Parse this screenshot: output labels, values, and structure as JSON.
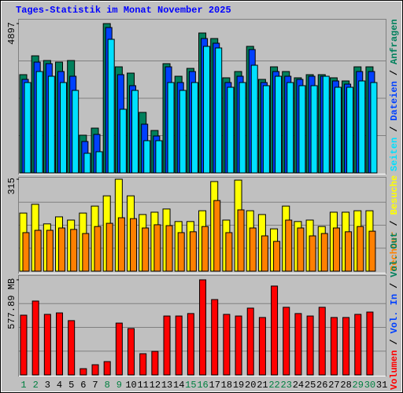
{
  "chart_data": [
    {
      "type": "bar",
      "title": "Tages-Statistik im Monat November 2025",
      "categories": [
        "1",
        "2",
        "3",
        "4",
        "5",
        "6",
        "7",
        "8",
        "9",
        "10",
        "11",
        "12",
        "13",
        "14",
        "15",
        "16",
        "17",
        "18",
        "19",
        "20",
        "21",
        "22",
        "23",
        "24",
        "25",
        "26",
        "27",
        "28",
        "29",
        "30",
        "31"
      ],
      "category_colors": [
        "#008040",
        "#008040",
        "#000000",
        "#000000",
        "#000000",
        "#000000",
        "#000000",
        "#008040",
        "#008040",
        "#000000",
        "#000000",
        "#000000",
        "#000000",
        "#000000",
        "#008040",
        "#008040",
        "#000000",
        "#000000",
        "#000000",
        "#000000",
        "#000000",
        "#008040",
        "#008040",
        "#000000",
        "#000000",
        "#000000",
        "#000000",
        "#000000",
        "#008040",
        "#008040",
        "#000000"
      ],
      "legend_separator": "/",
      "ylim": [
        0,
        4897
      ],
      "yticks": [
        4897
      ],
      "series": [
        {
          "name": "Anfragen",
          "color": "#00805c",
          "values": [
            3222,
            3840,
            3686,
            3634,
            3686,
            1237,
            1469,
            4897,
            3479,
            3273,
            1985,
            1392,
            3583,
            3170,
            3428,
            4588,
            4407,
            3119,
            3325,
            4150,
            3067,
            3479,
            3325,
            3119,
            3222,
            3222,
            3119,
            3016,
            3479,
            3479,
            null
          ]
        },
        {
          "name": "Dateien",
          "color": "#0040ff",
          "values": [
            3067,
            3634,
            3583,
            3325,
            3170,
            1031,
            1263,
            4768,
            3222,
            2861,
            1598,
            1211,
            3479,
            2964,
            3325,
            4407,
            4253,
            2964,
            3170,
            4046,
            2964,
            3325,
            3170,
            3067,
            3170,
            3170,
            3016,
            2912,
            3325,
            3325,
            null
          ]
        },
        {
          "name": "Seiten",
          "color": "#00e0ff",
          "values": [
            2964,
            3325,
            3170,
            2964,
            2706,
            644,
            696,
            4381,
            2088,
            2706,
            1057,
            1057,
            2964,
            2706,
            2964,
            4150,
            4098,
            2809,
            2964,
            3531,
            2861,
            3170,
            2964,
            2861,
            2861,
            3170,
            2809,
            2809,
            3016,
            2964,
            null
          ]
        }
      ]
    },
    {
      "type": "bar",
      "legend_separator": "/",
      "ylim": [
        0,
        315
      ],
      "yticks": [
        315
      ],
      "series": [
        {
          "name": "Besuche",
          "color": "#ffff00",
          "values": [
            199,
            229,
            162,
            186,
            175,
            199,
            223,
            258,
            315,
            258,
            194,
            202,
            213,
            170,
            170,
            207,
            307,
            175,
            312,
            207,
            194,
            145,
            223,
            170,
            175,
            153,
            202,
            202,
            207,
            207,
            null
          ]
        },
        {
          "name": "Rechner",
          "color": "#ff8000",
          "values": [
            132,
            140,
            140,
            148,
            143,
            129,
            153,
            164,
            183,
            180,
            148,
            159,
            156,
            132,
            135,
            153,
            242,
            132,
            210,
            148,
            121,
            102,
            175,
            148,
            121,
            129,
            148,
            135,
            153,
            137,
            null
          ]
        }
      ]
    },
    {
      "type": "bar",
      "legend_separator": "/",
      "ylim": [
        0,
        577.89
      ],
      "yticks": [
        {
          "value": 577.89,
          "label": "577.89 MB"
        }
      ],
      "series": [
        {
          "name": "Volumen",
          "color": "#ff0000",
          "values": [
            363,
            449,
            368,
            377,
            330,
            38,
            62,
            81,
            315,
            282,
            129,
            143,
            358,
            358,
            373,
            577.89,
            458,
            368,
            358,
            406,
            349,
            540,
            411,
            373,
            358,
            411,
            349,
            349,
            368,
            382,
            null
          ]
        },
        {
          "name": "Vol. In",
          "color": "#0040ff",
          "values": [
            null,
            null,
            null,
            null,
            null,
            null,
            null,
            null,
            null,
            null,
            null,
            null,
            null,
            null,
            null,
            null,
            null,
            null,
            null,
            null,
            null,
            null,
            null,
            null,
            null,
            null,
            null,
            null,
            null,
            null,
            null
          ]
        },
        {
          "name": "Vol. Out",
          "color": "#00805c",
          "values": [
            null,
            null,
            null,
            null,
            null,
            null,
            null,
            null,
            null,
            null,
            null,
            null,
            null,
            null,
            null,
            null,
            null,
            null,
            null,
            null,
            null,
            null,
            null,
            null,
            null,
            null,
            null,
            null,
            null,
            null,
            null
          ]
        }
      ]
    }
  ]
}
